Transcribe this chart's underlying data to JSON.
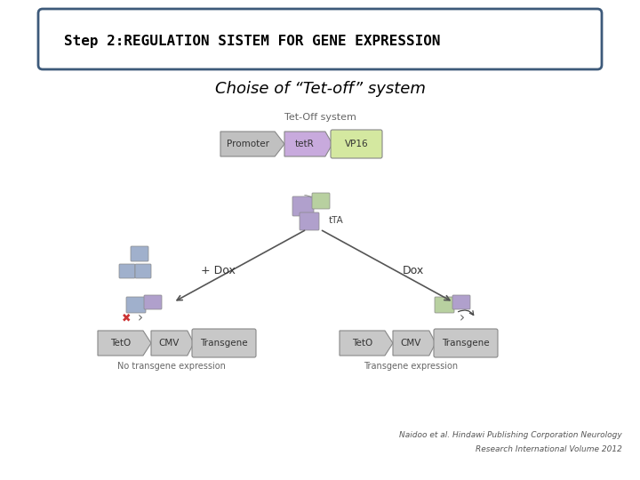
{
  "bg_color": "#f0f0f0",
  "slide_color": "#ffffff",
  "title_box_text": "Step 2:REGULATION SISTEM FOR GENE EXPRESSION",
  "subtitle_text": "Choise of “Tet-off” system",
  "tet_off_label": "Tet-Off system",
  "tTA_label": "tTA",
  "plus_dox_label": "+ Dox",
  "dox_label": "Dox",
  "no_transgene_label": "No transgene expression",
  "transgene_label": "Transgene expression",
  "citation_line1": "Naidoo et al. Hindawi Publishing Corporation Neurology",
  "citation_line2": "Research International Volume 2012",
  "title_box_border": "#3d5a7a",
  "promoter_color": "#c0c0c0",
  "tetr_color": "#c8aadd",
  "vp16_color": "#d4e8a0",
  "gray_box_color": "#c8c8c8",
  "purple_block_color": "#b0a0cc",
  "green_block_color": "#b8d0a0",
  "blue_block_color": "#a0b0cc"
}
